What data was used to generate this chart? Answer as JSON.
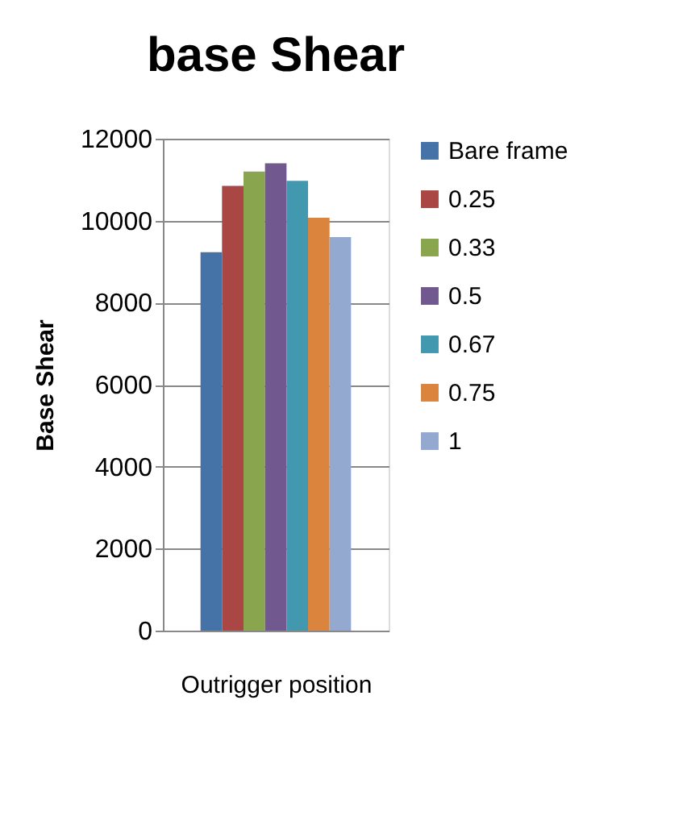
{
  "chart_data": {
    "type": "bar",
    "title": "base Shear",
    "xlabel": "Outrigger position",
    "ylabel": "Base Shear",
    "categories": [
      null
    ],
    "series": [
      {
        "name": "Bare frame",
        "color": "#4572a7",
        "values": [
          9230
        ]
      },
      {
        "name": "0.25",
        "color": "#aa4643",
        "values": [
          10850
        ]
      },
      {
        "name": "0.33",
        "color": "#89a54e",
        "values": [
          11200
        ]
      },
      {
        "name": "0.5",
        "color": "#71588f",
        "values": [
          11400
        ]
      },
      {
        "name": "0.67",
        "color": "#4198af",
        "values": [
          10970
        ]
      },
      {
        "name": "0.75",
        "color": "#db843d",
        "values": [
          10070
        ]
      },
      {
        "name": "1",
        "color": "#93a9cf",
        "values": [
          9600
        ]
      }
    ],
    "ylim": [
      0,
      12000
    ],
    "yticks": [
      0,
      2000,
      4000,
      6000,
      8000,
      10000,
      12000
    ],
    "grid": "y",
    "legend": "right"
  }
}
